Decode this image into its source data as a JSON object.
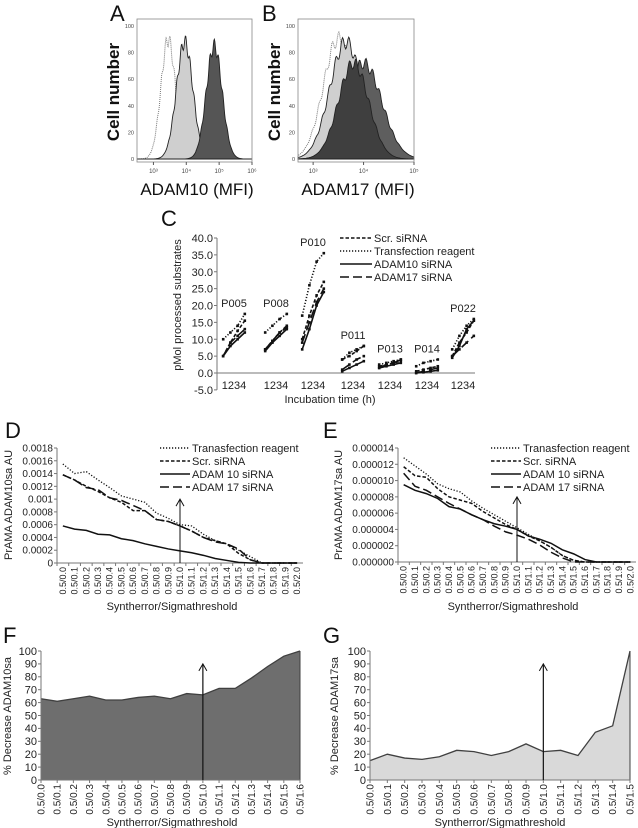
{
  "panels": {
    "A": "A",
    "B": "B",
    "C": "C",
    "D": "D",
    "E": "E",
    "F": "F",
    "G": "G"
  },
  "chart_data": [
    {
      "id": "A",
      "type": "histogram",
      "xlabel": "ADAM10 (MFI)",
      "ylabel": "Cell number",
      "xscale": "log",
      "xlim_log10": [
        2.5,
        6.0
      ],
      "ylim": [
        0,
        100
      ],
      "xticks_log10": [
        3,
        4,
        5,
        6
      ],
      "xtick_labels": [
        "10³",
        "10⁴",
        "10⁵",
        "10⁶"
      ],
      "yticks": [
        0,
        20,
        40,
        60,
        80,
        100
      ],
      "series": [
        {
          "style": "dotted-outline",
          "fill": "#ffffff",
          "peak_log10": 3.45,
          "height": 90,
          "spread": 0.22
        },
        {
          "style": "light-fill",
          "fill": "#cfcfcf",
          "peak_log10": 3.95,
          "height": 88,
          "spread": 0.25
        },
        {
          "style": "dark-fill",
          "fill": "#555555",
          "peak_log10": 4.85,
          "height": 85,
          "spread": 0.24
        }
      ]
    },
    {
      "id": "B",
      "type": "histogram",
      "xlabel": "ADAM17 (MFI)",
      "ylabel": "Cell number",
      "xscale": "log",
      "xlim_log10": [
        2.7,
        5.0
      ],
      "ylim": [
        0,
        100
      ],
      "xticks_log10": [
        3,
        4,
        5
      ],
      "xtick_labels": [
        "10³",
        "10⁴",
        "10⁵"
      ],
      "yticks": [
        0,
        20,
        40,
        60,
        80,
        100
      ],
      "series": [
        {
          "style": "dotted-outline",
          "fill": "#ffffff",
          "peak_log10": 3.5,
          "height": 90,
          "spread": 0.3
        },
        {
          "style": "light-fill",
          "fill": "#cfcfcf",
          "peak_log10": 3.65,
          "height": 88,
          "spread": 0.32
        },
        {
          "style": "dark-fill",
          "fill": "#5e5e5e",
          "peak_log10": 4.0,
          "height": 72,
          "spread": 0.36
        },
        {
          "style": "darker-fill",
          "fill": "#3f3f3f",
          "peak_log10": 3.8,
          "height": 72,
          "spread": 0.3
        }
      ]
    },
    {
      "id": "C",
      "type": "line",
      "ylabel": "pMol processed substrates",
      "xlabel": "Incubation time (h)",
      "ylim": [
        -5,
        40
      ],
      "yticks": [
        -5,
        0,
        5,
        10,
        15,
        20,
        25,
        30,
        35,
        40
      ],
      "time_labels": "1234",
      "groups": [
        "P005",
        "P008",
        "P010",
        "P011",
        "P013",
        "P014",
        "P022"
      ],
      "legend": [
        "Scr. siRNA",
        "Transfection reagent",
        "ADAM10 siRNA",
        "ADAM17 siRNA"
      ],
      "series": [
        {
          "name": "Scr. siRNA",
          "dash": "short-dash",
          "values": [
            [
              5,
              9,
              12.5,
              15.5
            ],
            [
              7,
              9.5,
              12,
              14
            ],
            [
              10,
              17,
              23,
              27
            ],
            [
              4,
              5,
              6.5,
              8
            ],
            [
              2,
              2.5,
              3,
              3.5
            ],
            [
              0.5,
              1,
              1.5,
              2
            ],
            [
              5,
              9,
              12,
              15.5
            ]
          ]
        },
        {
          "name": "Transfection reagent",
          "dash": "dotted",
          "values": [
            [
              10,
              12,
              14,
              17.5
            ],
            [
              12,
              14,
              16,
              17.5
            ],
            [
              17,
              26,
              33,
              35.5
            ],
            [
              4,
              6,
              7,
              8
            ],
            [
              2.5,
              3,
              3.5,
              4
            ],
            [
              2,
              3,
              3.5,
              4
            ],
            [
              7,
              11,
              14,
              16
            ]
          ]
        },
        {
          "name": "ADAM10 siRNA",
          "dash": "solid",
          "values": [
            [
              5,
              8,
              10,
              12
            ],
            [
              6.5,
              9,
              11,
              13
            ],
            [
              7,
              13,
              20,
              24
            ],
            [
              0.5,
              1.5,
              2.5,
              3.5
            ],
            [
              1.5,
              2,
              2.5,
              3
            ],
            [
              0,
              0.2,
              0.5,
              0.8
            ],
            [
              4.5,
              8,
              13,
              15.5
            ]
          ]
        },
        {
          "name": "ADAM17 siRNA",
          "dash": "long-dash",
          "values": [
            [
              5,
              9,
              11,
              13
            ],
            [
              7,
              9.5,
              12,
              13.5
            ],
            [
              9,
              15,
              21,
              25
            ],
            [
              1,
              2.5,
              4,
              5
            ],
            [
              1.5,
              2.5,
              3,
              4
            ],
            [
              0,
              0.5,
              1,
              1.5
            ],
            [
              5,
              7,
              9,
              11
            ]
          ]
        }
      ]
    },
    {
      "id": "D",
      "type": "line",
      "ylabel": "PrAMA  ADAM10sa AU",
      "xlabel": "Syntherror/Sigmathreshold",
      "ylim": [
        0,
        0.0018
      ],
      "yticks": [
        0,
        0.0002,
        0.0004,
        0.0006,
        0.0008,
        0.001,
        0.0012,
        0.0014,
        0.0016,
        0.0018
      ],
      "ytick_labels": [
        "0",
        "0.0002",
        "0.0004",
        "0.0006",
        "0.0008",
        "0.001",
        "0.0012",
        "0.0014",
        "0.0016",
        "0.0018"
      ],
      "categories": [
        "0.5/0.0",
        "0.5/0.1",
        "0.5/0.2",
        "0.5/0.3",
        "0.5/0.4",
        "0.5/0.5",
        "0.5/0.6",
        "0.5/0.7",
        "0.5/0.8",
        "0.5/0.9",
        "0.5/1.0",
        "0.5/1.1",
        "0.5/1.2",
        "0.5/1.3",
        "0.5/1.4",
        "0.5/1.5",
        "0.5/1.6",
        "0.5/1.7",
        "0.5/1.8",
        "0.5/1.9",
        "0.5/2.0"
      ],
      "arrow": {
        "category": "0.5/1.0",
        "to": 0.001
      },
      "series": [
        {
          "name": "Tranasfection reagent",
          "dash": "dotted",
          "values": [
            0.00155,
            0.0014,
            0.00143,
            0.0013,
            0.00118,
            0.00105,
            0.001,
            0.00095,
            0.00078,
            0.0007,
            0.0006,
            0.00058,
            0.00045,
            0.00035,
            0.0003,
            0.0002,
            0.0001,
            0,
            0,
            0,
            0
          ]
        },
        {
          "name": "Scr. siRNA",
          "dash": "short-dash",
          "values": [
            0.00138,
            0.0013,
            0.0012,
            0.00112,
            0.00102,
            0.00095,
            0.00082,
            0.00082,
            0.00068,
            0.00065,
            0.00058,
            0.0005,
            0.0004,
            0.00035,
            0.0003,
            0.00015,
            5e-05,
            0,
            0,
            0,
            0
          ]
        },
        {
          "name": "ADAM 10 siRNA",
          "dash": "solid",
          "values": [
            0.00058,
            0.00053,
            0.00051,
            0.00045,
            0.00044,
            0.00038,
            0.00035,
            0.0003,
            0.00026,
            0.00022,
            0.00019,
            0.00016,
            0.00012,
            7e-05,
            4e-05,
            1e-05,
            0,
            0,
            0,
            0,
            0
          ]
        },
        {
          "name": "ADAM 17 siRNA",
          "dash": "long-dash",
          "values": [
            0.00138,
            0.0013,
            0.00118,
            0.00115,
            0.00102,
            0.00098,
            0.0009,
            0.00082,
            0.00068,
            0.00065,
            0.00058,
            0.0005,
            0.0004,
            0.00033,
            0.0003,
            0.00022,
            5e-05,
            0,
            0,
            0,
            0
          ]
        }
      ]
    },
    {
      "id": "E",
      "type": "line",
      "ylabel": "PrAMA  ADAM17sa AU",
      "xlabel": "Syntherror/Sigmathreshold",
      "ylim": [
        0,
        1.4e-05
      ],
      "yticks": [
        0,
        2e-06,
        4e-06,
        6e-06,
        8e-06,
        1e-05,
        1.2e-05,
        1.4e-05
      ],
      "ytick_labels": [
        "0.000000",
        "0.000002",
        "0.000004",
        "0.000006",
        "0.000008",
        "0.000010",
        "0.000012",
        "0.000014"
      ],
      "categories": [
        "0.5/0.0",
        "0.5/0.1",
        "0.5/0.2",
        "0.5/0.3",
        "0.5/0.4",
        "0.5/0.5",
        "0.5/0.6",
        "0.5/0.7",
        "0.5/0.8",
        "0.5/0.9",
        "0.5/1.0",
        "0.5/1.1",
        "0.5/1.2",
        "0.5/1.3",
        "0.5/1.4",
        "0.5/1.5",
        "0.5/1.6",
        "0.5/1.7",
        "0.5/1.8",
        "0.5/1.9",
        "0.5/2.0"
      ],
      "arrow": {
        "category": "0.5/1.0",
        "to": 8e-06
      },
      "series": [
        {
          "name": "Tranasfection reagent",
          "dash": "dotted",
          "values": [
            1.28e-05,
            1.18e-05,
            1.08e-05,
            9.6e-06,
            9e-06,
            8.6e-06,
            7.5e-06,
            6.6e-06,
            5.8e-06,
            5e-06,
            4.2e-06,
            3.4e-06,
            2.6e-06,
            1.8e-06,
            8e-07,
            2e-07,
            0,
            0,
            0,
            0,
            0
          ]
        },
        {
          "name": "Scr. siRNA",
          "dash": "short-dash",
          "values": [
            1.17e-05,
            1.06e-05,
            1.04e-05,
            9e-06,
            8e-06,
            7.6e-06,
            7.2e-06,
            6.2e-06,
            5.4e-06,
            4.6e-06,
            4e-06,
            3.2e-06,
            2.6e-06,
            1.8e-06,
            8e-07,
            2e-07,
            0,
            0,
            0,
            0,
            0
          ]
        },
        {
          "name": "ADAM 10 siRNA",
          "dash": "solid",
          "values": [
            9.5e-06,
            8.8e-06,
            8.4e-06,
            7.8e-06,
            6.8e-06,
            6.5e-06,
            5.8e-06,
            5.2e-06,
            4.7e-06,
            4.4e-06,
            4e-06,
            3.2e-06,
            2.8e-06,
            2.3e-06,
            1.5e-06,
            1e-06,
            3e-07,
            0,
            0,
            0,
            0
          ]
        },
        {
          "name": "ADAM 17 siRNA",
          "dash": "long-dash",
          "values": [
            1.09e-05,
            9.3e-06,
            8.8e-06,
            8e-06,
            7.2e-06,
            6.5e-06,
            5.8e-06,
            5.2e-06,
            4.4e-06,
            3.7e-06,
            3.3e-06,
            2.8e-06,
            2.1e-06,
            1.2e-06,
            5e-07,
            0,
            0,
            0,
            0,
            0,
            0
          ]
        }
      ]
    },
    {
      "id": "F",
      "type": "area",
      "ylabel": "% Decrease ADAM10sa",
      "xlabel": "Syntherror/Sigmathreshold",
      "ylim": [
        0,
        100
      ],
      "yticks": [
        0,
        10,
        20,
        30,
        40,
        50,
        60,
        70,
        80,
        90,
        100
      ],
      "fill": "#6e6e6e",
      "categories": [
        "0.5/0.0",
        "0.5/0.1",
        "0.5/0.2",
        "0.5/0.3",
        "0.5/0.4",
        "0.5/0.5",
        "0.5/0.6",
        "0.5/0.7",
        "0.5/0.8",
        "0.5/0.9",
        "0.5/1.0",
        "0.5/1.1",
        "0.5/1.2",
        "0.5/1.3",
        "0.5/1.4",
        "0.5/1.5",
        "0.5/1.6"
      ],
      "values": [
        63,
        61,
        63,
        65,
        62,
        62,
        64,
        65,
        63,
        67,
        66,
        71,
        71,
        79,
        88,
        96,
        100
      ],
      "arrow": {
        "category": "0.5/1.0",
        "to": 90
      }
    },
    {
      "id": "G",
      "type": "area",
      "ylabel": "% Decrease ADAM17sa",
      "xlabel": "Syntherror/Sigmathreshold",
      "ylim": [
        0,
        100
      ],
      "yticks": [
        0,
        10,
        20,
        30,
        40,
        50,
        60,
        70,
        80,
        90,
        100
      ],
      "fill": "#d9d9d9",
      "categories": [
        "0.5/0.0",
        "0.5/0.1",
        "0.5/0.2",
        "0.5/0.3",
        "0.5/0.4",
        "0.5/0.5",
        "0.5/0.6",
        "0.5/0.7",
        "0.5/0.8",
        "0.5/0.9",
        "0.5/1.0",
        "0.5/1.1",
        "0.5/1.2",
        "0.5/1.3",
        "0.5/1.4",
        "0.5/1.5"
      ],
      "values": [
        15,
        20,
        17,
        16,
        18,
        23,
        22,
        19,
        22,
        28,
        22,
        23,
        19,
        37,
        42,
        100
      ],
      "arrow": {
        "category": "0.5/1.0",
        "to": 90
      }
    }
  ]
}
